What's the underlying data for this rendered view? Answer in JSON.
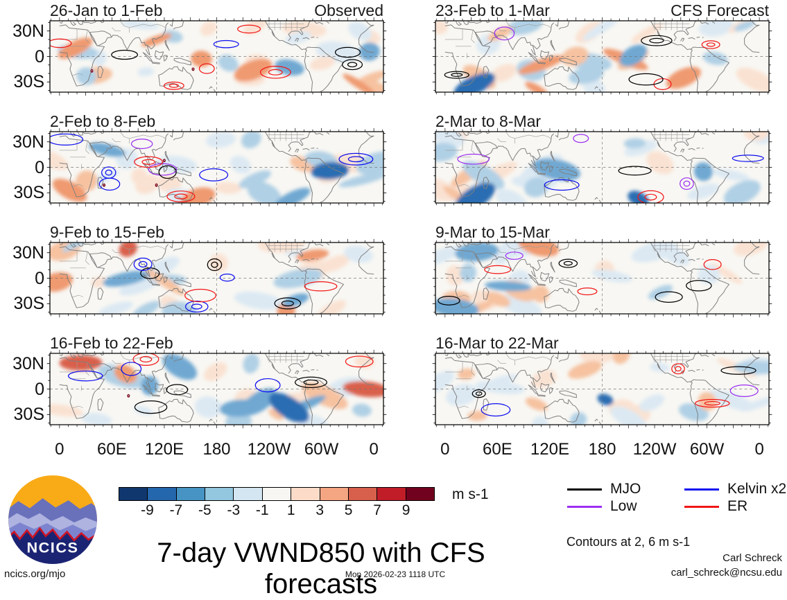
{
  "chart_data": {
    "type": "heatmap",
    "title": "7-day VWND850 with CFS forecasts",
    "field": "VWND850",
    "units": "m s-1",
    "panels": [
      {
        "title": "26-Jan to 1-Feb",
        "corner_label": "Observed",
        "column": "Observed",
        "seed": 101,
        "intensity": 1.0,
        "cyclones": [
          [
            37,
            -17
          ],
          [
            153,
            -15
          ]
        ]
      },
      {
        "title": "23-Feb to 1-Mar",
        "corner_label": "CFS Forecast",
        "column": "CFS Forecast",
        "seed": 207,
        "intensity": 0.6,
        "cyclones": []
      },
      {
        "title": "2-Feb to 8-Feb",
        "corner_label": "",
        "column": "Observed",
        "seed": 112,
        "intensity": 1.0,
        "cyclones": [
          [
            51,
            -21
          ],
          [
            120,
            8
          ],
          [
            111,
            -21
          ]
        ]
      },
      {
        "title": "2-Mar to 8-Mar",
        "corner_label": "",
        "column": "CFS Forecast",
        "seed": 214,
        "intensity": 0.55,
        "cyclones": []
      },
      {
        "title": "9-Feb to 15-Feb",
        "corner_label": "",
        "column": "Observed",
        "seed": 123,
        "intensity": 1.0,
        "cyclones": []
      },
      {
        "title": "9-Mar to 15-Mar",
        "corner_label": "",
        "column": "CFS Forecast",
        "seed": 222,
        "intensity": 0.45,
        "cyclones": []
      },
      {
        "title": "16-Feb to 22-Feb",
        "corner_label": "",
        "column": "Observed",
        "seed": 134,
        "intensity": 1.1,
        "cyclones": [
          [
            79,
            -8
          ]
        ]
      },
      {
        "title": "16-Mar to 22-Mar",
        "corner_label": "",
        "column": "CFS Forecast",
        "seed": 231,
        "intensity": 0.4,
        "cyclones": []
      }
    ],
    "y_axis": {
      "tick_labels": [
        "30N",
        "0",
        "30S"
      ],
      "range_deg": [
        -42,
        42
      ]
    },
    "x_axis": {
      "tick_labels": [
        "0",
        "60E",
        "120E",
        "180",
        "120W",
        "60W",
        "0"
      ],
      "tick_lons": [
        0,
        60,
        120,
        180,
        240,
        300,
        360
      ]
    },
    "colorbar": {
      "tick_labels": [
        "-9",
        "-7",
        "-5",
        "-3",
        "-1",
        "1",
        "3",
        "5",
        "7",
        "9"
      ],
      "colors": [
        "#11386e",
        "#2467ad",
        "#4794c4",
        "#93c6df",
        "#d3e6f1",
        "#f7f6f3",
        "#fcdcc8",
        "#f4a582",
        "#d7604c",
        "#c01d29",
        "#71021f"
      ],
      "units_label": "m s-1"
    },
    "legend": {
      "items": [
        {
          "label": "MJO",
          "color": "#000000"
        },
        {
          "label": "Kelvin x2",
          "color": "#0e0ef0"
        },
        {
          "label": "Low",
          "color": "#9c2ff2"
        },
        {
          "label": "ER",
          "color": "#f21616"
        }
      ],
      "note": "Contours at 2, 6 m s-1"
    }
  },
  "branding": {
    "logo_text": "NCICS",
    "url": "ncics.org/mjo",
    "timestamp": "Mon 2026-02-23 1118 UTC",
    "credit_name": "Carl Schreck",
    "credit_email": "carl_schreck@ncsu.edu"
  }
}
